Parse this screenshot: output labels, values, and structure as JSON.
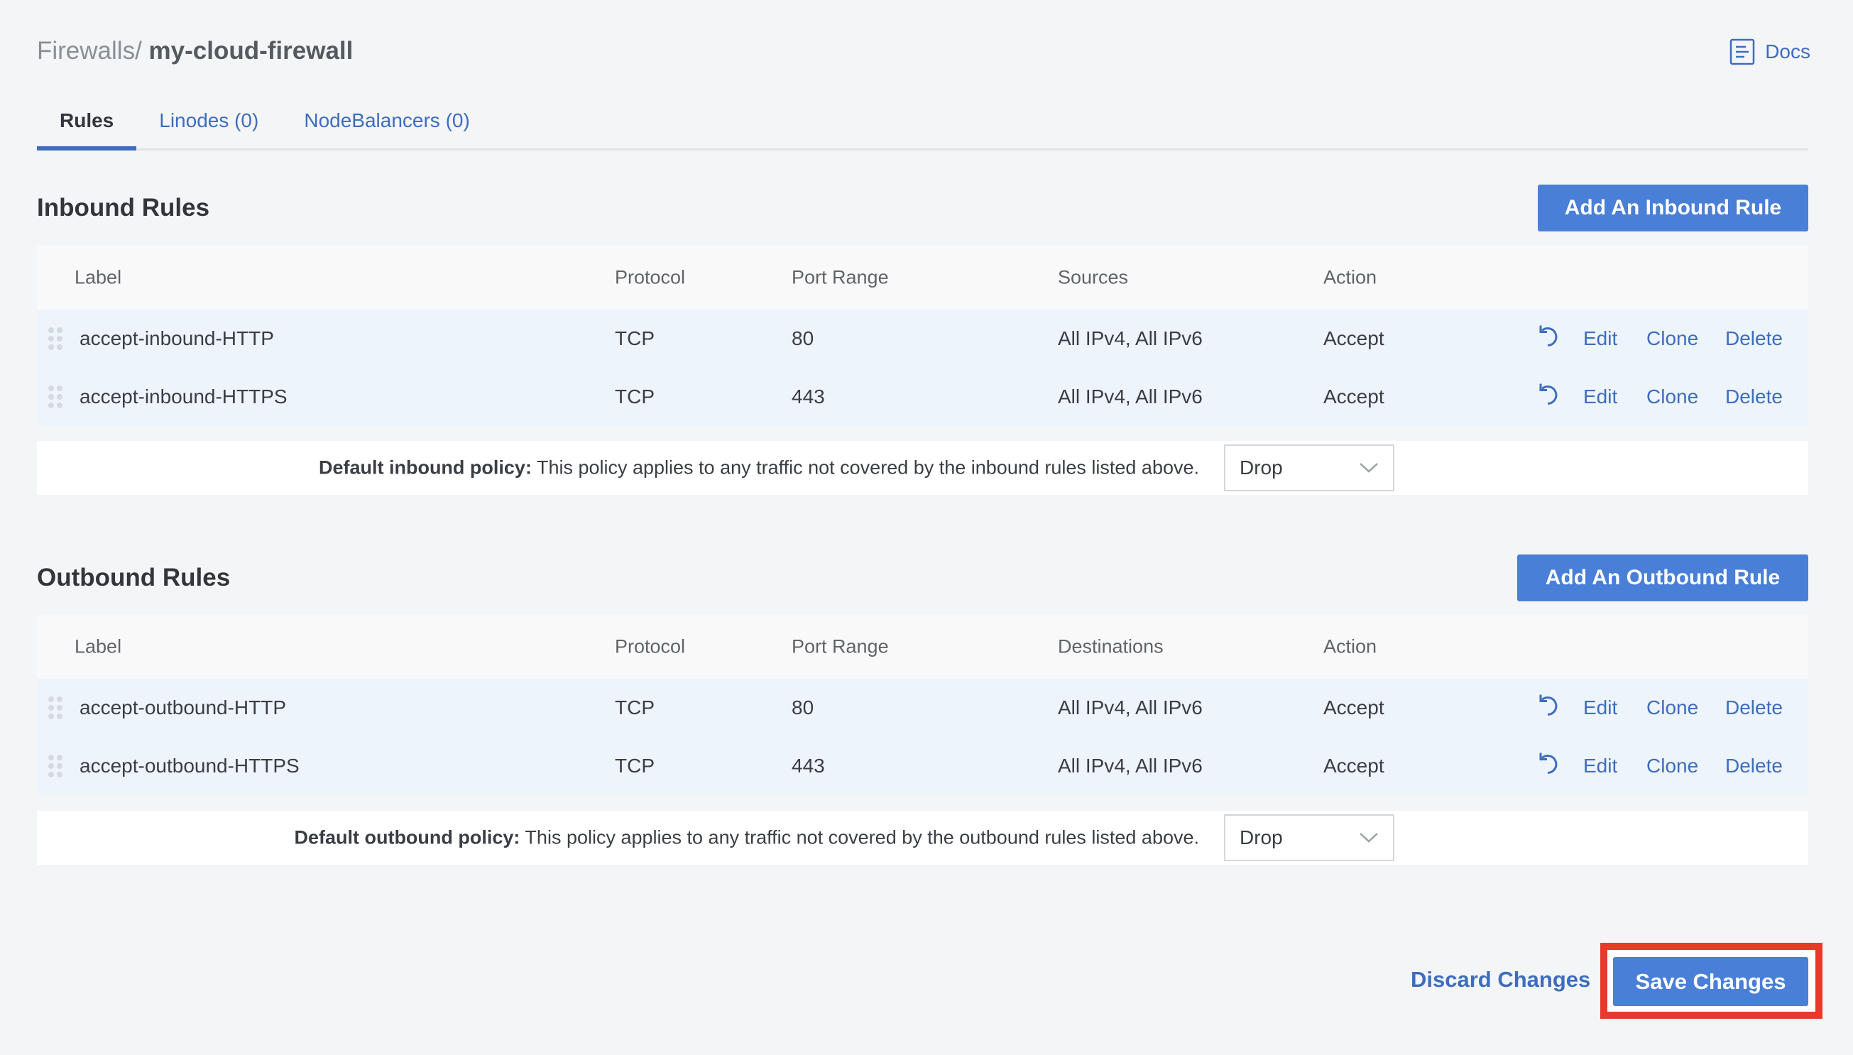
{
  "breadcrumb": {
    "parent": "Firewalls",
    "separator": "/",
    "current": "my-cloud-firewall"
  },
  "docs": {
    "label": "Docs",
    "icon": "docs-icon"
  },
  "tabs": [
    {
      "label": "Rules",
      "active": true
    },
    {
      "label": "Linodes (0)"
    },
    {
      "label": "NodeBalancers (0)"
    }
  ],
  "inbound": {
    "title": "Inbound Rules",
    "add_label": "Add An Inbound Rule",
    "columns": [
      "Label",
      "Protocol",
      "Port Range",
      "Sources",
      "Action"
    ],
    "rows": [
      {
        "label": "accept-inbound-HTTP",
        "protocol": "TCP",
        "ports": "80",
        "targets": "All IPv4, All IPv6",
        "action": "Accept"
      },
      {
        "label": "accept-inbound-HTTPS",
        "protocol": "TCP",
        "ports": "443",
        "targets": "All IPv4, All IPv6",
        "action": "Accept"
      }
    ],
    "policy_label": "Default inbound policy:",
    "policy_text": " This policy applies to any traffic not covered by the inbound rules listed above.",
    "policy_value": "Drop"
  },
  "outbound": {
    "title": "Outbound Rules",
    "add_label": "Add An Outbound Rule",
    "columns": [
      "Label",
      "Protocol",
      "Port Range",
      "Destinations",
      "Action"
    ],
    "rows": [
      {
        "label": "accept-outbound-HTTP",
        "protocol": "TCP",
        "ports": "80",
        "targets": "All IPv4, All IPv6",
        "action": "Accept"
      },
      {
        "label": "accept-outbound-HTTPS",
        "protocol": "TCP",
        "ports": "443",
        "targets": "All IPv4, All IPv6",
        "action": "Accept"
      }
    ],
    "policy_label": "Default outbound policy:",
    "policy_text": " This policy applies to any traffic not covered by the outbound rules listed above.",
    "policy_value": "Drop"
  },
  "row_actions": {
    "edit": "Edit",
    "clone": "Clone",
    "delete": "Delete"
  },
  "footer": {
    "discard": "Discard Changes",
    "save": "Save Changes"
  },
  "colors": {
    "accent": "#4a7fd7",
    "link": "#3e6dbf",
    "highlight": "#e8392a"
  }
}
